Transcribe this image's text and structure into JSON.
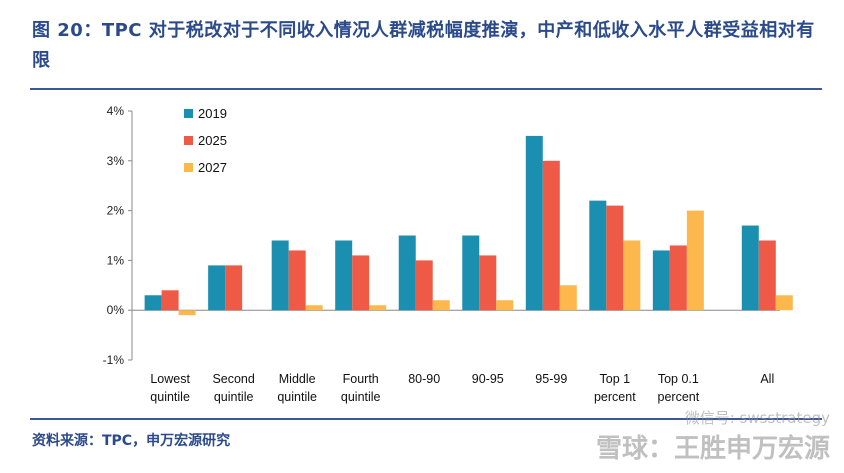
{
  "title": {
    "prefix": "图 20：",
    "text": "TPC 对于税改对于不同收入情况人群减税幅度推演，中产和低收入水平人群受益相对有限"
  },
  "source": "资料来源：TPC，申万宏源研究",
  "watermark": {
    "line1": "微信号: swsstrategy",
    "line2": "雪球：王胜申万宏源"
  },
  "colors": {
    "2019": "#1B8FB0",
    "2025": "#EE5A45",
    "2027": "#FDB84D",
    "title": "#2B4A8C",
    "rule": "#3B5998"
  },
  "chart_data": {
    "type": "bar",
    "categories": [
      [
        "Lowest",
        "quintile"
      ],
      [
        "Second",
        "quintile"
      ],
      [
        "Middle",
        "quintile"
      ],
      [
        "Fourth",
        "quintile"
      ],
      [
        "80-90"
      ],
      [
        "90-95"
      ],
      [
        "95-99"
      ],
      [
        "Top 1",
        "percent"
      ],
      [
        "Top 0.1",
        "percent"
      ],
      [
        "All"
      ]
    ],
    "series": [
      {
        "name": "2019",
        "values": [
          0.3,
          0.9,
          1.4,
          1.4,
          1.5,
          1.5,
          3.5,
          2.2,
          1.2,
          1.7
        ]
      },
      {
        "name": "2025",
        "values": [
          0.4,
          0.9,
          1.2,
          1.1,
          1.0,
          1.1,
          3.0,
          2.1,
          1.3,
          1.4
        ]
      },
      {
        "name": "2027",
        "values": [
          -0.1,
          0.0,
          0.1,
          0.1,
          0.2,
          0.2,
          0.5,
          1.4,
          2.0,
          0.3
        ]
      }
    ],
    "yticks": [
      "-1%",
      "0%",
      "1%",
      "2%",
      "3%",
      "4%"
    ],
    "ylim": [
      -1,
      4
    ],
    "legend_position": "top-left",
    "grid": false
  }
}
